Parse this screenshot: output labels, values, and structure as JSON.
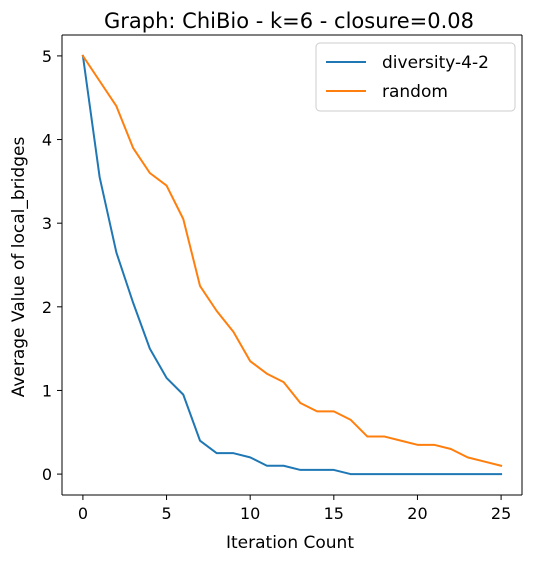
{
  "chart_data": {
    "type": "line",
    "title": "Graph: ChiBio - k=6 - closure=0.08",
    "xlabel": "Iteration Count",
    "ylabel": "Average Value of local_bridges",
    "xlim": [
      -1.25,
      26.25
    ],
    "ylim": [
      -0.25,
      5.25
    ],
    "xticks": [
      0,
      5,
      10,
      15,
      20,
      25
    ],
    "xtick_labels": [
      "0",
      "5",
      "10",
      "15",
      "20",
      "25"
    ],
    "yticks": [
      0,
      1,
      2,
      3,
      4,
      5
    ],
    "ytick_labels": [
      "0",
      "1",
      "2",
      "3",
      "4",
      "5"
    ],
    "grid": false,
    "legend_position": "top-right",
    "x": [
      0,
      1,
      2,
      3,
      4,
      5,
      6,
      7,
      8,
      9,
      10,
      11,
      12,
      13,
      14,
      15,
      16,
      17,
      18,
      19,
      20,
      21,
      22,
      23,
      24,
      25
    ],
    "series": [
      {
        "name": "diversity-4-2",
        "color": "#1f77b4",
        "values": [
          5.0,
          3.55,
          2.65,
          2.05,
          1.5,
          1.15,
          0.95,
          0.4,
          0.25,
          0.25,
          0.2,
          0.1,
          0.1,
          0.05,
          0.05,
          0.05,
          0.0,
          0.0,
          0.0,
          0.0,
          0.0,
          0.0,
          0.0,
          0.0,
          0.0,
          0.0
        ]
      },
      {
        "name": "random",
        "color": "#ff7f0e",
        "values": [
          5.0,
          4.7,
          4.4,
          3.9,
          3.6,
          3.45,
          3.05,
          2.25,
          1.95,
          1.7,
          1.35,
          1.2,
          1.1,
          0.85,
          0.75,
          0.75,
          0.65,
          0.45,
          0.45,
          0.4,
          0.35,
          0.35,
          0.3,
          0.2,
          0.15,
          0.1
        ]
      }
    ]
  }
}
